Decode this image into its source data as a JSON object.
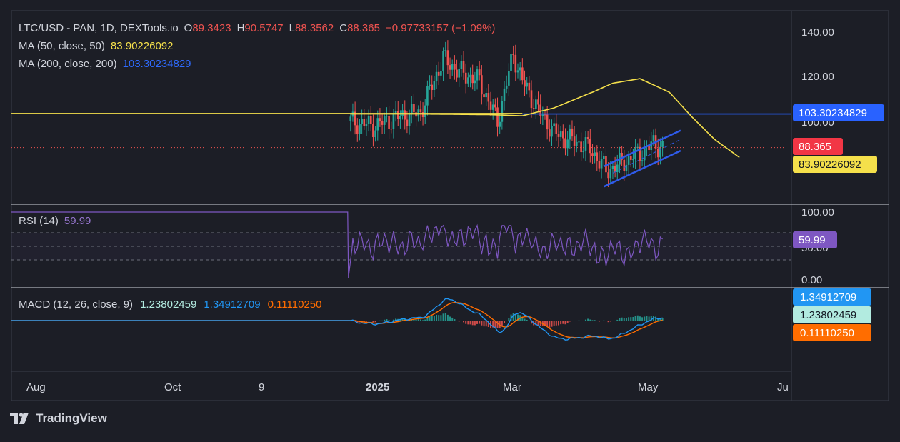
{
  "header": {
    "symbol": "LTC/USD - PAN, 1D, DEXTools.io",
    "o_label": "O",
    "open": "89.3423",
    "h_label": "H",
    "high": "90.5747",
    "l_label": "L",
    "low": "88.3562",
    "c_label": "C",
    "close": "88.365",
    "change": "−0.97733157 (−1.09%)",
    "ma50_label": "MA (50, close, 50)",
    "ma50_value": "83.90226092",
    "ma200_label": "MA (200, close, 200)",
    "ma200_value": "103.30234829"
  },
  "colors": {
    "background": "#1c1e26",
    "up": "#26a69a",
    "down": "#ef5350",
    "ma50": "#f5e04b",
    "ma200": "#2962ff",
    "rsi": "#7e57c2",
    "macd": "#2196f3",
    "signal": "#ff6d00",
    "channel": "#2f5bea"
  },
  "price_axis": {
    "ticks": [
      "140.00",
      "120.00",
      "100.00"
    ]
  },
  "price_badges": {
    "ma200": "103.30234829",
    "close": "88.365",
    "ma50": "83.90226092"
  },
  "rsi_panel": {
    "label": "RSI (14)",
    "value": "59.99",
    "ticks": [
      "100.00",
      "50.00",
      "0.00"
    ]
  },
  "macd_panel": {
    "label": "MACD (12, 26, close, 9)",
    "macd_value": "1.23802459",
    "signal_value": "1.34912709",
    "hist_value": "0.11110250"
  },
  "time_axis": {
    "labels": [
      "Aug",
      "Oct",
      "9",
      "2025",
      "Mar",
      "May",
      "Ju"
    ]
  },
  "brand": {
    "name": "TradingView"
  },
  "chart_data": {
    "type": "line",
    "title": "LTC/USD - PAN, 1D, DEXTools.io",
    "ylim": [
      60,
      148
    ],
    "x_range": [
      "2024-07-18",
      "2025-06-28"
    ],
    "grid": false,
    "series": [
      {
        "name": "MA (50, close, 50)",
        "x": [
          "2024-12-15",
          "2025-01-15",
          "2025-02-15",
          "2025-03-01",
          "2025-03-15",
          "2025-04-01",
          "2025-04-10",
          "2025-04-22",
          "2025-05-05",
          "2025-05-15",
          "2025-05-25",
          "2025-06-05"
        ],
        "values": [
          103.3,
          103.3,
          103.0,
          102.5,
          106,
          113,
          117,
          119,
          113,
          102,
          92,
          84
        ]
      },
      {
        "name": "MA (200, close, 200)",
        "x": [
          "2024-07-18",
          "2025-06-28"
        ],
        "values": [
          103.3,
          103.3
        ]
      },
      {
        "name": "LTC/USD close",
        "x": [
          "2024-12-15",
          "2024-12-25",
          "2025-01-05",
          "2025-01-15",
          "2025-01-25",
          "2025-02-01",
          "2025-02-10",
          "2025-02-18",
          "2025-02-25",
          "2025-03-01",
          "2025-03-08",
          "2025-03-15",
          "2025-03-22",
          "2025-03-31",
          "2025-04-07",
          "2025-04-15",
          "2025-04-22",
          "2025-04-28",
          "2025-05-02"
        ],
        "values": [
          100,
          98,
          102,
          104,
          128,
          122,
          118,
          100,
          130,
          118,
          105,
          95,
          92,
          88,
          78,
          82,
          86,
          90,
          88.4
        ]
      }
    ]
  }
}
